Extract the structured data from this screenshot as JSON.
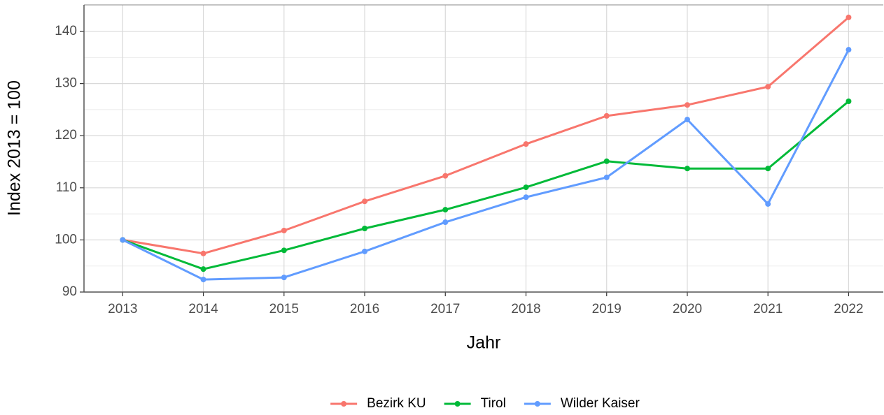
{
  "chart_data": {
    "type": "line",
    "x": [
      2013,
      2014,
      2015,
      2016,
      2017,
      2018,
      2019,
      2020,
      2021,
      2022
    ],
    "series": [
      {
        "name": "Bezirk KU",
        "color": "#f8766d",
        "values": [
          100,
          97.4,
          101.8,
          107.4,
          112.3,
          118.4,
          123.8,
          125.9,
          129.4,
          142.7
        ]
      },
      {
        "name": "Tirol",
        "color": "#00ba38",
        "values": [
          100,
          94.4,
          98.0,
          102.2,
          105.8,
          110.1,
          115.1,
          113.7,
          113.7,
          126.6
        ]
      },
      {
        "name": "Wilder Kaiser",
        "color": "#619cff",
        "values": [
          100,
          92.4,
          92.8,
          97.8,
          103.4,
          108.2,
          112.0,
          123.1,
          106.9,
          136.5
        ]
      }
    ],
    "xlabel": "Jahr",
    "ylabel": "Index  2013  = 100",
    "xlim": [
      2012.52,
      2022.43
    ],
    "xticks": [
      2013,
      2014,
      2015,
      2016,
      2017,
      2018,
      2019,
      2020,
      2021,
      2022
    ],
    "ylim": [
      90,
      145.1
    ],
    "yticks": [
      90,
      100,
      110,
      120,
      130,
      140
    ],
    "y_minor_ticks": [
      95,
      105,
      115,
      125,
      135
    ],
    "grid": true,
    "legend": "bottom"
  }
}
